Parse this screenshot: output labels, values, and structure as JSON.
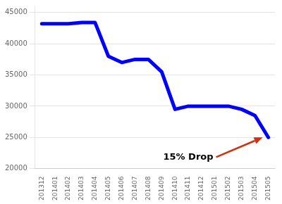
{
  "chart_data": {
    "type": "line",
    "categories": [
      "201312",
      "201401",
      "201402",
      "201403",
      "201404",
      "201405",
      "201406",
      "201407",
      "201408",
      "201409",
      "201410",
      "201411",
      "201412",
      "201501",
      "201502",
      "201503",
      "201504",
      "201505"
    ],
    "values": [
      43200,
      43200,
      43200,
      43400,
      43400,
      38000,
      37000,
      37500,
      37500,
      35500,
      29500,
      30000,
      30000,
      30000,
      30000,
      29500,
      28500,
      25000
    ],
    "color": "#0000ff",
    "ylim": [
      20000,
      46000
    ],
    "yticks": [
      20000,
      25000,
      30000,
      35000,
      40000,
      45000
    ],
    "grid": true,
    "annotations": [
      {
        "text": "15% Drop",
        "color": "#cc3311"
      }
    ]
  }
}
